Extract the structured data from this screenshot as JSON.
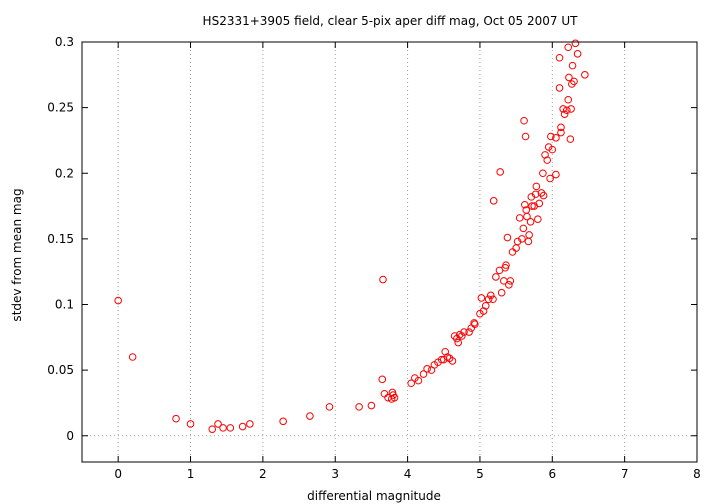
{
  "chart_data": {
    "type": "scatter",
    "title": "HS2331+3905 field, clear 5-pix aper diff mag, Oct 05 2007 UT",
    "xlabel": "differential magnitude",
    "ylabel": "stdev from mean mag",
    "xlim": [
      -0.5,
      8
    ],
    "ylim": [
      -0.02,
      0.3
    ],
    "xticks": [
      0,
      1,
      2,
      3,
      4,
      5,
      6,
      7,
      8
    ],
    "yticks": [
      0,
      0.05,
      0.1,
      0.15,
      0.2,
      0.25,
      0.3
    ],
    "grid": "vertical dotted at x ticks, horizontal dotted at y=0",
    "marker": "open circle",
    "colors": {
      "points": "#ff0000",
      "axes": "#000000",
      "grid": "#a0a0a0"
    },
    "points": [
      [
        0.0,
        0.103
      ],
      [
        0.2,
        0.06
      ],
      [
        0.8,
        0.013
      ],
      [
        1.0,
        0.009
      ],
      [
        1.3,
        0.005
      ],
      [
        1.38,
        0.009
      ],
      [
        1.45,
        0.006
      ],
      [
        1.55,
        0.006
      ],
      [
        1.72,
        0.007
      ],
      [
        1.82,
        0.009
      ],
      [
        2.28,
        0.011
      ],
      [
        2.65,
        0.015
      ],
      [
        2.92,
        0.022
      ],
      [
        3.33,
        0.022
      ],
      [
        3.5,
        0.023
      ],
      [
        3.65,
        0.043
      ],
      [
        3.66,
        0.119
      ],
      [
        3.68,
        0.032
      ],
      [
        3.73,
        0.029
      ],
      [
        3.78,
        0.028
      ],
      [
        3.79,
        0.033
      ],
      [
        3.8,
        0.031
      ],
      [
        3.82,
        0.029
      ],
      [
        4.05,
        0.04
      ],
      [
        4.1,
        0.044
      ],
      [
        4.15,
        0.042
      ],
      [
        4.22,
        0.047
      ],
      [
        4.27,
        0.051
      ],
      [
        4.33,
        0.05
      ],
      [
        4.37,
        0.054
      ],
      [
        4.42,
        0.056
      ],
      [
        4.47,
        0.058
      ],
      [
        4.5,
        0.058
      ],
      [
        4.52,
        0.064
      ],
      [
        4.55,
        0.06
      ],
      [
        4.58,
        0.059
      ],
      [
        4.62,
        0.057
      ],
      [
        4.65,
        0.076
      ],
      [
        4.68,
        0.074
      ],
      [
        4.7,
        0.071
      ],
      [
        4.72,
        0.077
      ],
      [
        4.75,
        0.076
      ],
      [
        4.78,
        0.079
      ],
      [
        4.85,
        0.079
      ],
      [
        4.88,
        0.082
      ],
      [
        4.92,
        0.086
      ],
      [
        4.93,
        0.085
      ],
      [
        5.0,
        0.093
      ],
      [
        5.02,
        0.105
      ],
      [
        5.05,
        0.095
      ],
      [
        5.08,
        0.099
      ],
      [
        5.12,
        0.104
      ],
      [
        5.15,
        0.107
      ],
      [
        5.18,
        0.104
      ],
      [
        5.19,
        0.179
      ],
      [
        5.22,
        0.121
      ],
      [
        5.27,
        0.126
      ],
      [
        5.28,
        0.201
      ],
      [
        5.3,
        0.109
      ],
      [
        5.33,
        0.118
      ],
      [
        5.35,
        0.128
      ],
      [
        5.36,
        0.13
      ],
      [
        5.38,
        0.151
      ],
      [
        5.4,
        0.115
      ],
      [
        5.42,
        0.118
      ],
      [
        5.45,
        0.14
      ],
      [
        5.5,
        0.143
      ],
      [
        5.52,
        0.148
      ],
      [
        5.55,
        0.166
      ],
      [
        5.58,
        0.15
      ],
      [
        5.6,
        0.158
      ],
      [
        5.61,
        0.24
      ],
      [
        5.62,
        0.176
      ],
      [
        5.63,
        0.228
      ],
      [
        5.64,
        0.172
      ],
      [
        5.65,
        0.167
      ],
      [
        5.67,
        0.148
      ],
      [
        5.68,
        0.153
      ],
      [
        5.7,
        0.163
      ],
      [
        5.71,
        0.182
      ],
      [
        5.72,
        0.175
      ],
      [
        5.75,
        0.175
      ],
      [
        5.77,
        0.184
      ],
      [
        5.78,
        0.19
      ],
      [
        5.8,
        0.165
      ],
      [
        5.82,
        0.177
      ],
      [
        5.85,
        0.185
      ],
      [
        5.87,
        0.2
      ],
      [
        5.88,
        0.183
      ],
      [
        5.9,
        0.214
      ],
      [
        5.93,
        0.21
      ],
      [
        5.95,
        0.22
      ],
      [
        5.97,
        0.196
      ],
      [
        5.98,
        0.228
      ],
      [
        6.0,
        0.218
      ],
      [
        6.05,
        0.199
      ],
      [
        6.05,
        0.227
      ],
      [
        6.1,
        0.265
      ],
      [
        6.12,
        0.231
      ],
      [
        6.12,
        0.235
      ],
      [
        6.1,
        0.288
      ],
      [
        6.15,
        0.249
      ],
      [
        6.17,
        0.245
      ],
      [
        6.2,
        0.248
      ],
      [
        6.22,
        0.256
      ],
      [
        6.22,
        0.296
      ],
      [
        6.23,
        0.273
      ],
      [
        6.25,
        0.226
      ],
      [
        6.26,
        0.249
      ],
      [
        6.27,
        0.268
      ],
      [
        6.28,
        0.282
      ],
      [
        6.3,
        0.27
      ],
      [
        6.32,
        0.299
      ],
      [
        6.35,
        0.291
      ],
      [
        6.45,
        0.275
      ]
    ]
  }
}
